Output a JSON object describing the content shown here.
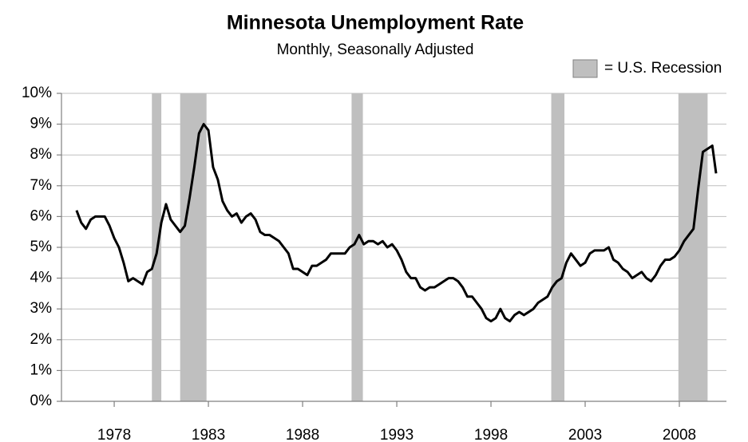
{
  "chart_data": {
    "type": "line",
    "title": "Minnesota Unemployment Rate",
    "subtitle": "Monthly, Seasonally Adjusted",
    "legend_label": "= U.S. Recession",
    "recession_color": "#bfbfbf",
    "recessions": [
      [
        1980.0,
        1980.5
      ],
      [
        1981.5,
        1982.9
      ],
      [
        1990.6,
        1991.2
      ],
      [
        2001.2,
        2001.9
      ],
      [
        2007.95,
        2009.5
      ]
    ],
    "x": [
      1976.0,
      1976.25,
      1976.5,
      1976.75,
      1977.0,
      1977.25,
      1977.5,
      1977.75,
      1978.0,
      1978.25,
      1978.5,
      1978.75,
      1979.0,
      1979.25,
      1979.5,
      1979.75,
      1980.0,
      1980.25,
      1980.5,
      1980.75,
      1981.0,
      1981.25,
      1981.5,
      1981.75,
      1982.0,
      1982.25,
      1982.5,
      1982.75,
      1983.0,
      1983.25,
      1983.5,
      1983.75,
      1984.0,
      1984.25,
      1984.5,
      1984.75,
      1985.0,
      1985.25,
      1985.5,
      1985.75,
      1986.0,
      1986.25,
      1986.5,
      1986.75,
      1987.0,
      1987.25,
      1987.5,
      1987.75,
      1988.0,
      1988.25,
      1988.5,
      1988.75,
      1989.0,
      1989.25,
      1989.5,
      1989.75,
      1990.0,
      1990.25,
      1990.5,
      1990.75,
      1991.0,
      1991.25,
      1991.5,
      1991.75,
      1992.0,
      1992.25,
      1992.5,
      1992.75,
      1993.0,
      1993.25,
      1993.5,
      1993.75,
      1994.0,
      1994.25,
      1994.5,
      1994.75,
      1995.0,
      1995.25,
      1995.5,
      1995.75,
      1996.0,
      1996.25,
      1996.5,
      1996.75,
      1997.0,
      1997.25,
      1997.5,
      1997.75,
      1998.0,
      1998.25,
      1998.5,
      1998.75,
      1999.0,
      1999.25,
      1999.5,
      1999.75,
      2000.0,
      2000.25,
      2000.5,
      2000.75,
      2001.0,
      2001.25,
      2001.5,
      2001.75,
      2002.0,
      2002.25,
      2002.5,
      2002.75,
      2003.0,
      2003.25,
      2003.5,
      2003.75,
      2004.0,
      2004.25,
      2004.5,
      2004.75,
      2005.0,
      2005.25,
      2005.5,
      2005.75,
      2006.0,
      2006.25,
      2006.5,
      2006.75,
      2007.0,
      2007.25,
      2007.5,
      2007.75,
      2008.0,
      2008.25,
      2008.5,
      2008.75,
      2009.0,
      2009.25,
      2009.5,
      2009.75,
      2009.95
    ],
    "series": [
      {
        "name": "Minnesota",
        "color": "#000000",
        "values": [
          6.2,
          5.8,
          5.6,
          5.9,
          6.0,
          6.0,
          6.0,
          5.7,
          5.3,
          5.0,
          4.5,
          3.9,
          4.0,
          3.9,
          3.8,
          4.2,
          4.3,
          4.8,
          5.8,
          6.4,
          5.9,
          5.7,
          5.5,
          5.7,
          6.6,
          7.6,
          8.7,
          9.0,
          8.8,
          7.6,
          7.2,
          6.5,
          6.2,
          6.0,
          6.1,
          5.8,
          6.0,
          6.1,
          5.9,
          5.5,
          5.4,
          5.4,
          5.3,
          5.2,
          5.0,
          4.8,
          4.3,
          4.3,
          4.2,
          4.1,
          4.4,
          4.4,
          4.5,
          4.6,
          4.8,
          4.8,
          4.8,
          4.8,
          5.0,
          5.1,
          5.4,
          5.1,
          5.2,
          5.2,
          5.1,
          5.2,
          5.0,
          5.1,
          4.9,
          4.6,
          4.2,
          4.0,
          4.0,
          3.7,
          3.6,
          3.7,
          3.7,
          3.8,
          3.9,
          4.0,
          4.0,
          3.9,
          3.7,
          3.4,
          3.4,
          3.2,
          3.0,
          2.7,
          2.6,
          2.7,
          3.0,
          2.7,
          2.6,
          2.8,
          2.9,
          2.8,
          2.9,
          3.0,
          3.2,
          3.3,
          3.4,
          3.7,
          3.9,
          4.0,
          4.5,
          4.8,
          4.6,
          4.4,
          4.5,
          4.8,
          4.9,
          4.9,
          4.9,
          5.0,
          4.6,
          4.5,
          4.3,
          4.2,
          4.0,
          4.1,
          4.2,
          4.0,
          3.9,
          4.1,
          4.4,
          4.6,
          4.6,
          4.7,
          4.9,
          5.2,
          5.4,
          5.6,
          6.9,
          8.1,
          8.2,
          8.3,
          7.4
        ]
      }
    ],
    "xlim": [
      1975.2,
      2010.5
    ],
    "xticks": [
      1978,
      1983,
      1988,
      1993,
      1998,
      2003,
      2008
    ],
    "ylim": [
      0,
      10
    ],
    "yticks": [
      {
        "value": 0,
        "label": "0%"
      },
      {
        "value": 1,
        "label": "1%"
      },
      {
        "value": 2,
        "label": "2%"
      },
      {
        "value": 3,
        "label": "3%"
      },
      {
        "value": 4,
        "label": "4%"
      },
      {
        "value": 5,
        "label": "5%"
      },
      {
        "value": 6,
        "label": "6%"
      },
      {
        "value": 7,
        "label": "7%"
      },
      {
        "value": 8,
        "label": "8%"
      },
      {
        "value": 9,
        "label": "9%"
      },
      {
        "value": 10,
        "label": "10%"
      }
    ],
    "grid": true
  }
}
